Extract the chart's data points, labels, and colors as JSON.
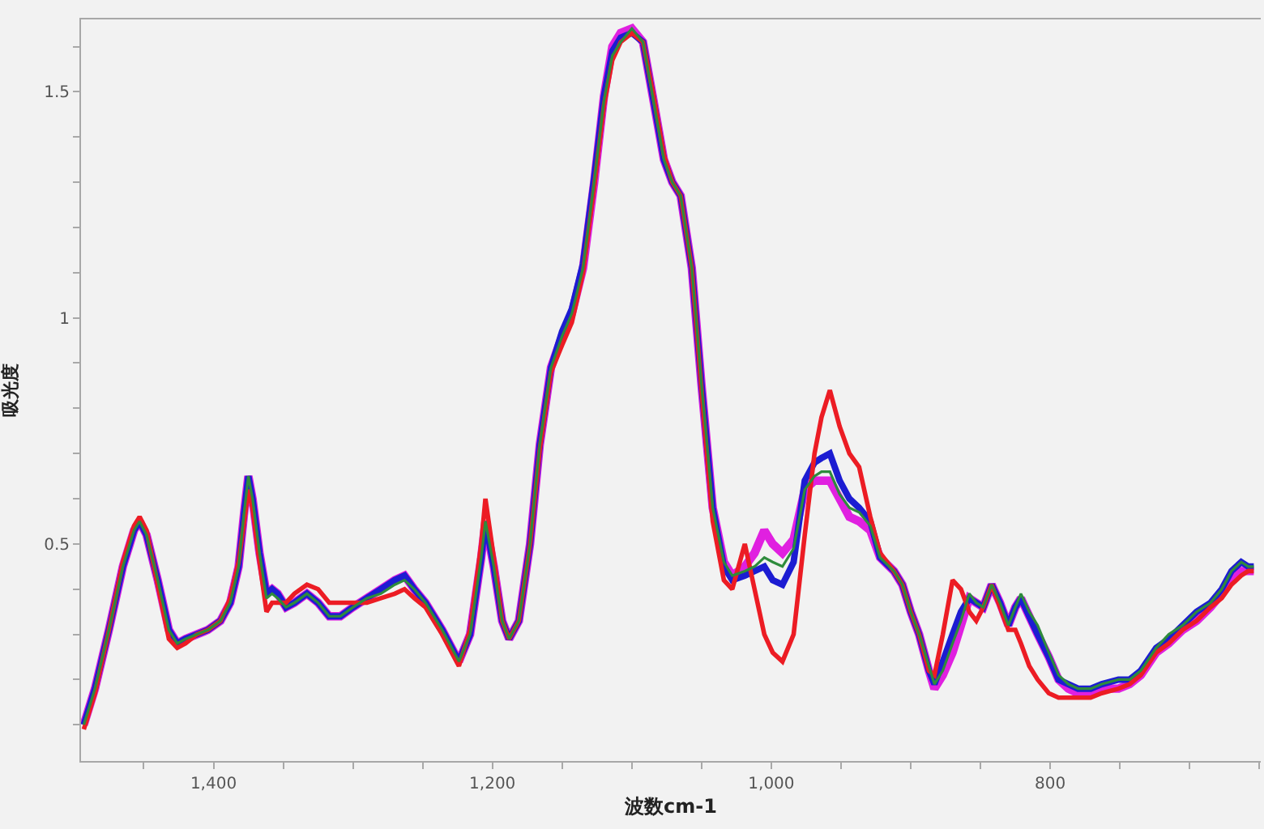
{
  "chart_data": {
    "type": "line",
    "xlabel": "波数cm-1",
    "ylabel": "吸光度",
    "xlim": [
      1495,
      649
    ],
    "ylim": [
      0.02,
      1.66
    ],
    "xticks": [
      {
        "value": 1450,
        "label": null
      },
      {
        "value": 1400,
        "label": "1,400"
      },
      {
        "value": 1350,
        "label": null
      },
      {
        "value": 1300,
        "label": null
      },
      {
        "value": 1250,
        "label": null
      },
      {
        "value": 1200,
        "label": "1,200"
      },
      {
        "value": 1150,
        "label": null
      },
      {
        "value": 1100,
        "label": null
      },
      {
        "value": 1050,
        "label": null
      },
      {
        "value": 1000,
        "label": "1,000"
      },
      {
        "value": 950,
        "label": null
      },
      {
        "value": 900,
        "label": null
      },
      {
        "value": 850,
        "label": null
      },
      800,
      {
        "value": 750,
        "label": null
      },
      {
        "value": 700,
        "label": null
      },
      {
        "value": 650,
        "label": null
      }
    ],
    "yticks": [
      {
        "value": 0.1,
        "label": null
      },
      {
        "value": 0.2,
        "label": null
      },
      {
        "value": 0.3,
        "label": null
      },
      {
        "value": 0.4,
        "label": null
      },
      0.5,
      {
        "value": 0.6,
        "label": null
      },
      {
        "value": 0.7,
        "label": null
      },
      {
        "value": 0.8,
        "label": null
      },
      {
        "value": 0.9,
        "label": null
      },
      1,
      {
        "value": 1.1,
        "label": null
      },
      {
        "value": 1.2,
        "label": null
      },
      {
        "value": 1.3,
        "label": null
      },
      {
        "value": 1.4,
        "label": null
      },
      1.5,
      {
        "value": 1.6,
        "label": null
      }
    ],
    "x": [
      1493,
      1485,
      1475,
      1465,
      1457,
      1453,
      1448,
      1440,
      1432,
      1426,
      1420,
      1412,
      1404,
      1395,
      1388,
      1382,
      1378,
      1375,
      1372,
      1367,
      1362,
      1358,
      1354,
      1348,
      1342,
      1333,
      1325,
      1317,
      1309,
      1300,
      1290,
      1280,
      1270,
      1263,
      1256,
      1248,
      1236,
      1224,
      1216,
      1208,
      1205,
      1199,
      1193,
      1188,
      1181,
      1173,
      1166,
      1158,
      1150,
      1143,
      1135,
      1127,
      1120,
      1114,
      1108,
      1100,
      1092,
      1085,
      1077,
      1071,
      1065,
      1057,
      1050,
      1042,
      1034,
      1028,
      1019,
      1012,
      1005,
      999,
      992,
      984,
      976,
      969,
      964,
      958,
      951,
      944,
      937,
      929,
      922,
      912,
      906,
      900,
      894,
      887,
      883,
      877,
      870,
      864,
      858,
      853,
      848,
      842,
      836,
      830,
      825,
      821,
      815,
      809,
      801,
      794,
      787,
      780,
      771,
      763,
      751,
      743,
      735,
      724,
      715,
      705,
      695,
      685,
      677,
      670,
      663,
      658,
      654
    ],
    "series": [
      {
        "color": "#e020e0",
        "values": [
          0.1,
          0.18,
          0.31,
          0.45,
          0.53,
          0.55,
          0.52,
          0.42,
          0.31,
          0.28,
          0.29,
          0.3,
          0.31,
          0.33,
          0.37,
          0.45,
          0.57,
          0.65,
          0.6,
          0.48,
          0.39,
          0.4,
          0.39,
          0.36,
          0.37,
          0.39,
          0.37,
          0.34,
          0.34,
          0.36,
          0.38,
          0.4,
          0.42,
          0.43,
          0.4,
          0.37,
          0.31,
          0.24,
          0.3,
          0.47,
          0.55,
          0.45,
          0.33,
          0.29,
          0.33,
          0.5,
          0.72,
          0.89,
          0.96,
          1.01,
          1.11,
          1.3,
          1.49,
          1.6,
          1.63,
          1.64,
          1.61,
          1.49,
          1.35,
          1.3,
          1.27,
          1.11,
          0.85,
          0.58,
          0.46,
          0.43,
          0.45,
          0.48,
          0.53,
          0.5,
          0.48,
          0.51,
          0.62,
          0.64,
          0.64,
          0.64,
          0.6,
          0.56,
          0.55,
          0.53,
          0.47,
          0.44,
          0.41,
          0.35,
          0.3,
          0.22,
          0.18,
          0.21,
          0.26,
          0.32,
          0.38,
          0.37,
          0.36,
          0.41,
          0.37,
          0.32,
          0.36,
          0.38,
          0.34,
          0.3,
          0.25,
          0.2,
          0.18,
          0.17,
          0.17,
          0.18,
          0.18,
          0.19,
          0.21,
          0.26,
          0.28,
          0.31,
          0.33,
          0.36,
          0.39,
          0.42,
          0.44,
          0.44,
          0.44
        ]
      },
      {
        "color": "#1c1cd2",
        "values": [
          0.1,
          0.18,
          0.31,
          0.45,
          0.53,
          0.55,
          0.52,
          0.42,
          0.31,
          0.28,
          0.29,
          0.3,
          0.31,
          0.33,
          0.37,
          0.45,
          0.57,
          0.65,
          0.6,
          0.48,
          0.39,
          0.4,
          0.39,
          0.36,
          0.37,
          0.39,
          0.37,
          0.34,
          0.34,
          0.36,
          0.38,
          0.4,
          0.42,
          0.43,
          0.4,
          0.37,
          0.31,
          0.24,
          0.3,
          0.47,
          0.55,
          0.45,
          0.33,
          0.29,
          0.33,
          0.5,
          0.72,
          0.89,
          0.97,
          1.02,
          1.12,
          1.31,
          1.49,
          1.59,
          1.62,
          1.63,
          1.61,
          1.49,
          1.35,
          1.3,
          1.27,
          1.11,
          0.85,
          0.58,
          0.45,
          0.42,
          0.43,
          0.44,
          0.45,
          0.42,
          0.41,
          0.46,
          0.64,
          0.68,
          0.69,
          0.7,
          0.64,
          0.6,
          0.58,
          0.55,
          0.47,
          0.44,
          0.41,
          0.35,
          0.3,
          0.22,
          0.19,
          0.24,
          0.3,
          0.35,
          0.38,
          0.37,
          0.36,
          0.41,
          0.37,
          0.32,
          0.36,
          0.38,
          0.34,
          0.3,
          0.25,
          0.2,
          0.19,
          0.18,
          0.18,
          0.19,
          0.2,
          0.2,
          0.22,
          0.27,
          0.29,
          0.32,
          0.35,
          0.37,
          0.4,
          0.44,
          0.46,
          0.45,
          0.45
        ]
      },
      {
        "color": "#ec1c24",
        "values": [
          0.09,
          0.17,
          0.31,
          0.46,
          0.54,
          0.56,
          0.53,
          0.41,
          0.29,
          0.27,
          0.28,
          0.3,
          0.31,
          0.33,
          0.38,
          0.46,
          0.55,
          0.62,
          0.58,
          0.46,
          0.35,
          0.37,
          0.37,
          0.37,
          0.39,
          0.41,
          0.4,
          0.37,
          0.37,
          0.37,
          0.37,
          0.38,
          0.39,
          0.4,
          0.38,
          0.36,
          0.3,
          0.23,
          0.31,
          0.5,
          0.6,
          0.47,
          0.33,
          0.29,
          0.33,
          0.5,
          0.71,
          0.88,
          0.94,
          0.99,
          1.1,
          1.29,
          1.47,
          1.57,
          1.61,
          1.63,
          1.61,
          1.5,
          1.36,
          1.3,
          1.27,
          1.11,
          0.84,
          0.55,
          0.42,
          0.4,
          0.5,
          0.4,
          0.3,
          0.26,
          0.24,
          0.3,
          0.52,
          0.7,
          0.78,
          0.84,
          0.76,
          0.7,
          0.67,
          0.56,
          0.48,
          0.44,
          0.41,
          0.35,
          0.3,
          0.22,
          0.21,
          0.3,
          0.42,
          0.4,
          0.35,
          0.33,
          0.36,
          0.41,
          0.36,
          0.31,
          0.31,
          0.28,
          0.23,
          0.2,
          0.17,
          0.16,
          0.16,
          0.16,
          0.16,
          0.17,
          0.18,
          0.19,
          0.21,
          0.26,
          0.28,
          0.31,
          0.33,
          0.36,
          0.38,
          0.41,
          0.43,
          0.44,
          0.44
        ]
      },
      {
        "color": "#2e8b3c",
        "values": [
          0.1,
          0.18,
          0.31,
          0.45,
          0.53,
          0.55,
          0.52,
          0.42,
          0.31,
          0.28,
          0.29,
          0.3,
          0.31,
          0.33,
          0.37,
          0.45,
          0.57,
          0.65,
          0.6,
          0.48,
          0.38,
          0.39,
          0.38,
          0.36,
          0.37,
          0.39,
          0.37,
          0.34,
          0.34,
          0.36,
          0.38,
          0.39,
          0.41,
          0.42,
          0.4,
          0.37,
          0.31,
          0.24,
          0.3,
          0.47,
          0.55,
          0.45,
          0.33,
          0.29,
          0.33,
          0.5,
          0.72,
          0.89,
          0.96,
          1.01,
          1.11,
          1.3,
          1.48,
          1.58,
          1.61,
          1.64,
          1.61,
          1.49,
          1.35,
          1.3,
          1.27,
          1.11,
          0.85,
          0.58,
          0.46,
          0.43,
          0.44,
          0.45,
          0.47,
          0.46,
          0.45,
          0.49,
          0.62,
          0.65,
          0.66,
          0.66,
          0.61,
          0.58,
          0.57,
          0.54,
          0.47,
          0.44,
          0.41,
          0.35,
          0.3,
          0.23,
          0.19,
          0.22,
          0.28,
          0.33,
          0.39,
          0.37,
          0.36,
          0.41,
          0.37,
          0.32,
          0.36,
          0.39,
          0.35,
          0.32,
          0.26,
          0.21,
          0.19,
          0.18,
          0.18,
          0.19,
          0.2,
          0.2,
          0.22,
          0.27,
          0.3,
          0.32,
          0.35,
          0.37,
          0.4,
          0.44,
          0.46,
          0.45,
          0.45
        ]
      }
    ]
  }
}
